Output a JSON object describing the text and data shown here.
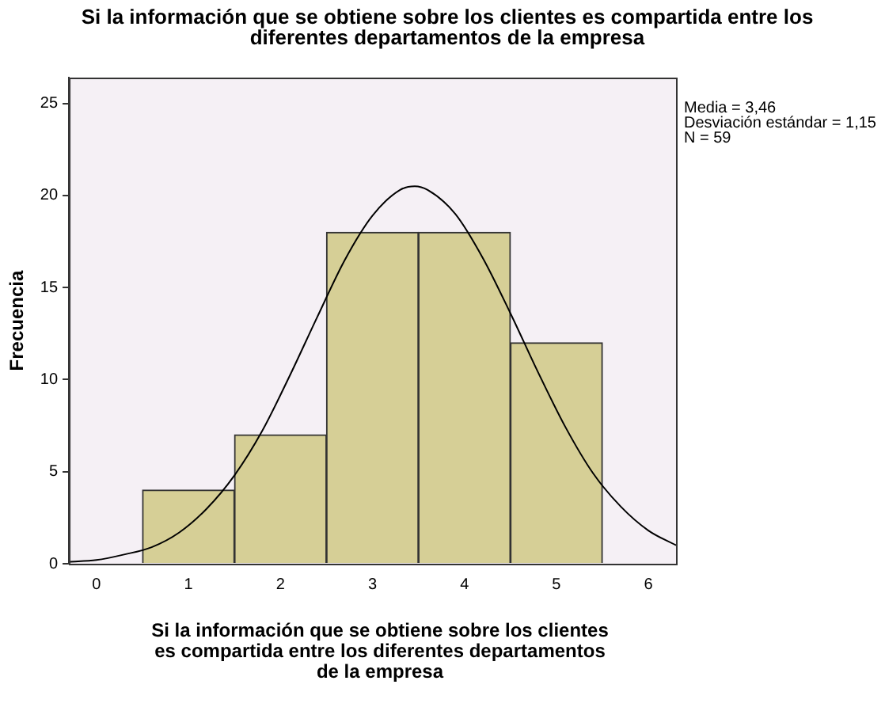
{
  "chart_data": {
    "type": "histogram",
    "title": "Si la información que se obtiene sobre los clientes es compartida entre los diferentes departamentos de la empresa",
    "xlabel": "Si la información que se obtiene sobre los clientes es compartida entre los diferentes departamentos de la empresa",
    "ylabel": "Frecuencia",
    "bins": [
      0.5,
      1.5,
      2.5,
      3.5,
      4.5,
      5.5
    ],
    "values": [
      4,
      7,
      18,
      18,
      12
    ],
    "color": "#d6cf96",
    "xlim": [
      -0.3,
      6.3
    ],
    "xticks": [
      0,
      1,
      2,
      3,
      4,
      5,
      6
    ],
    "ylim": [
      0,
      26.4
    ],
    "yticks": [
      0,
      5,
      10,
      15,
      20,
      25
    ],
    "grid": false,
    "annotations": [
      "Media = 3,46",
      "Desviación estándar = 1,15",
      "N = 59"
    ],
    "series": [
      {
        "type": "line",
        "color": "#000000",
        "x": [
          -0.3,
          0,
          0.3,
          0.6,
          0.9,
          1.2,
          1.5,
          1.8,
          2.1,
          2.4,
          2.7,
          3.0,
          3.3,
          3.46,
          3.6,
          3.9,
          4.2,
          4.5,
          4.8,
          5.1,
          5.4,
          5.7,
          6.0,
          6.3
        ],
        "values": [
          0.1,
          0.2,
          0.5,
          0.9,
          1.7,
          3.0,
          4.8,
          7.2,
          10.2,
          13.4,
          16.5,
          18.9,
          20.3,
          20.5,
          20.3,
          19.0,
          16.6,
          13.6,
          10.4,
          7.4,
          4.9,
          3.1,
          1.8,
          1.0
        ]
      }
    ]
  }
}
